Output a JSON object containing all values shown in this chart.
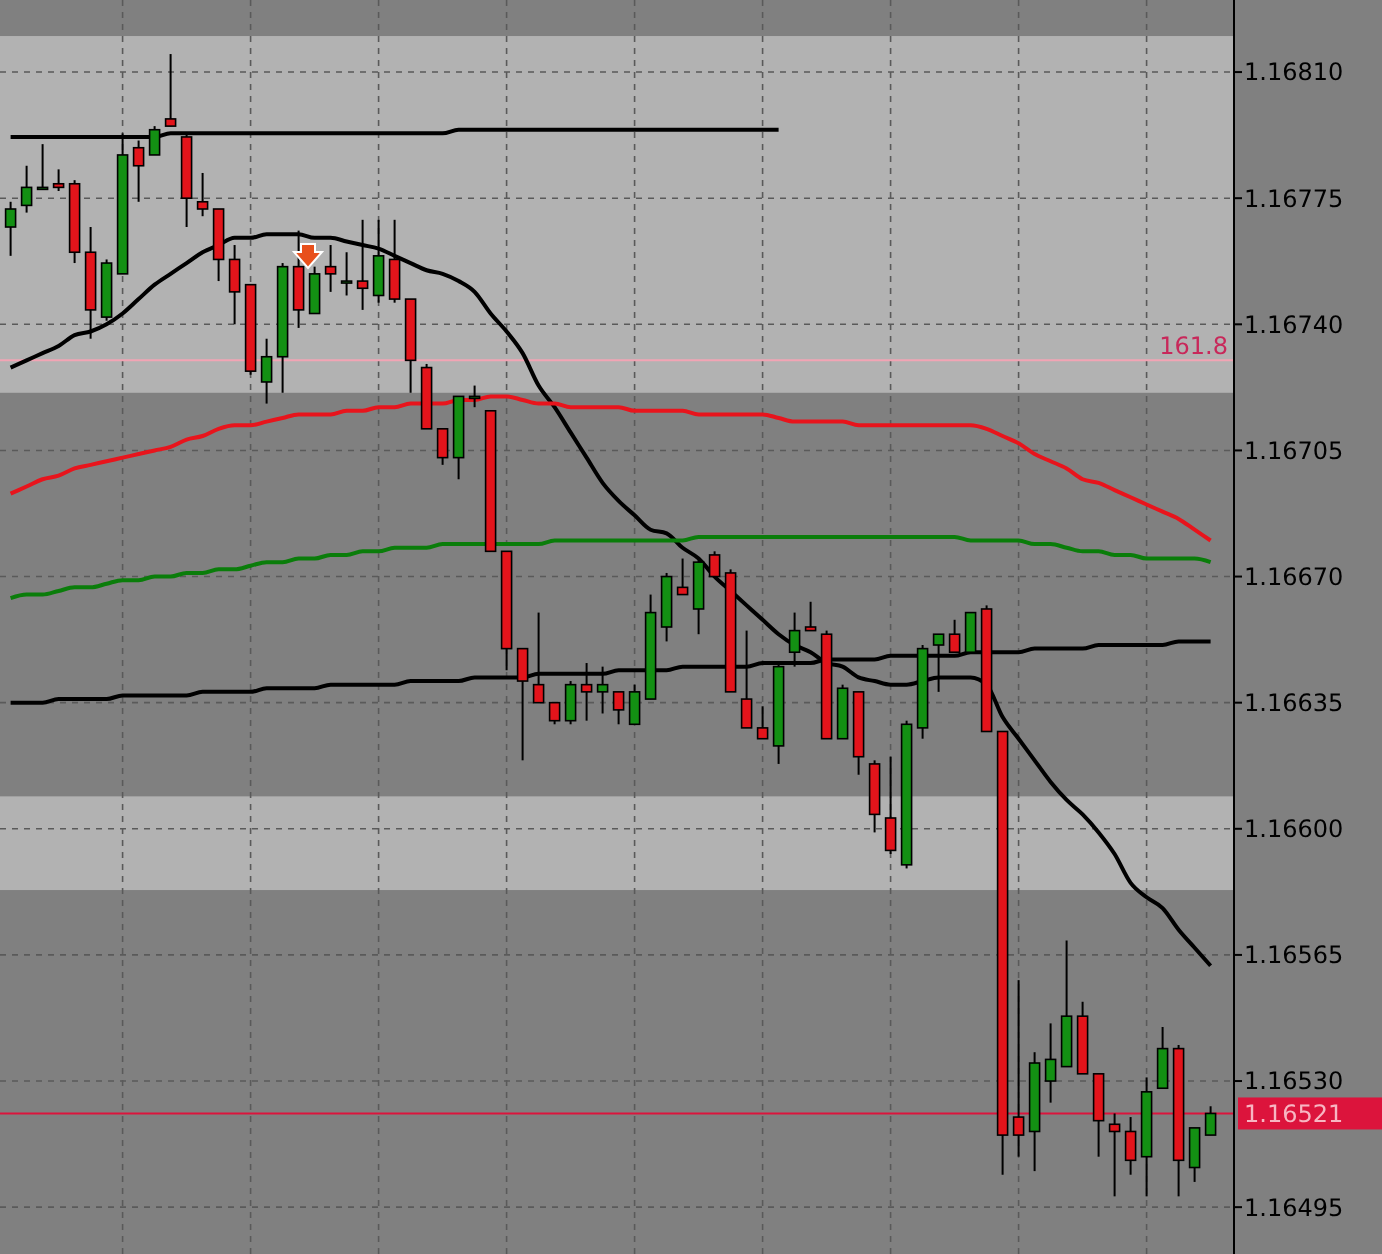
{
  "chart_data": {
    "type": "candlestick",
    "categories": [
      null,
      null,
      null,
      null,
      null,
      null,
      null,
      null,
      null,
      null,
      null,
      null,
      null,
      null,
      null,
      null,
      null,
      null,
      null,
      null,
      null,
      null,
      null,
      null,
      null,
      null,
      null,
      null,
      null,
      null,
      null,
      null,
      null,
      null,
      null,
      null,
      null,
      null,
      null,
      null,
      null,
      null,
      null,
      null,
      null,
      null,
      null,
      null,
      null,
      null,
      null,
      null,
      null,
      null,
      null,
      null,
      null,
      null,
      null,
      null,
      null,
      null,
      null,
      null,
      null,
      null,
      null,
      null,
      null,
      null,
      null,
      null,
      null,
      null,
      null,
      null
    ],
    "ohlc": [
      [
        1.16767,
        1.16774,
        1.16759,
        1.16772
      ],
      [
        1.16773,
        1.16784,
        1.16771,
        1.16778
      ],
      [
        1.16778,
        1.1679,
        1.16778,
        1.16778
      ],
      [
        1.16779,
        1.16783,
        1.16777,
        1.16778
      ],
      [
        1.16779,
        1.1678,
        1.16757,
        1.1676
      ],
      [
        1.1676,
        1.16767,
        1.16736,
        1.16744
      ],
      [
        1.16742,
        1.16758,
        1.16741,
        1.16757
      ],
      [
        1.16754,
        1.16793,
        1.16754,
        1.16787
      ],
      [
        1.16789,
        1.16791,
        1.16774,
        1.16784
      ],
      [
        1.16787,
        1.16795,
        1.16787,
        1.16794
      ],
      [
        1.16797,
        1.16815,
        1.16795,
        1.16795
      ],
      [
        1.16792,
        1.16793,
        1.16767,
        1.16775
      ],
      [
        1.16774,
        1.16782,
        1.1677,
        1.16772
      ],
      [
        1.16772,
        1.16772,
        1.16752,
        1.16758
      ],
      [
        1.16758,
        1.16762,
        1.1674,
        1.16749
      ],
      [
        1.16751,
        1.16751,
        1.16726,
        1.16727
      ],
      [
        1.16724,
        1.16736,
        1.16718,
        1.16731
      ],
      [
        1.16731,
        1.16757,
        1.16721,
        1.16756
      ],
      [
        1.16756,
        1.16766,
        1.16739,
        1.16744
      ],
      [
        1.16743,
        1.16756,
        1.16743,
        1.16754
      ],
      [
        1.16756,
        1.16762,
        1.16749,
        1.16754
      ],
      [
        1.16752,
        1.1676,
        1.16748,
        1.16752
      ],
      [
        1.16752,
        1.16769,
        1.16744,
        1.1675
      ],
      [
        1.16748,
        1.16769,
        1.16746,
        1.16759
      ],
      [
        1.16758,
        1.16769,
        1.16746,
        1.16747
      ],
      [
        1.16747,
        1.16747,
        1.16721,
        1.1673
      ],
      [
        1.16728,
        1.16729,
        1.16711,
        1.16711
      ],
      [
        1.16711,
        1.16711,
        1.16701,
        1.16703
      ],
      [
        1.16703,
        1.1672,
        1.16697,
        1.1672
      ],
      [
        1.1672,
        1.16723,
        1.16717,
        1.1672
      ],
      [
        1.16716,
        1.16716,
        1.16677,
        1.16677
      ],
      [
        1.16677,
        1.16677,
        1.16644,
        1.1665
      ],
      [
        1.1665,
        1.1665,
        1.16619,
        1.16641
      ],
      [
        1.1664,
        1.1666,
        1.16635,
        1.16635
      ],
      [
        1.16635,
        1.16635,
        1.16629,
        1.1663
      ],
      [
        1.1663,
        1.16641,
        1.16629,
        1.1664
      ],
      [
        1.1664,
        1.16646,
        1.1663,
        1.16638
      ],
      [
        1.16638,
        1.16645,
        1.16632,
        1.1664
      ],
      [
        1.16638,
        1.16638,
        1.16629,
        1.16633
      ],
      [
        1.16629,
        1.1664,
        1.16629,
        1.16638
      ],
      [
        1.16636,
        1.16665,
        1.16636,
        1.1666
      ],
      [
        1.16656,
        1.16671,
        1.16652,
        1.1667
      ],
      [
        1.16667,
        1.16675,
        1.16665,
        1.16665
      ],
      [
        1.16661,
        1.16675,
        1.16654,
        1.16674
      ],
      [
        1.16676,
        1.16677,
        1.1667,
        1.1667
      ],
      [
        1.16671,
        1.16672,
        1.16638,
        1.16638
      ],
      [
        1.16636,
        1.16655,
        1.16628,
        1.16628
      ],
      [
        1.16628,
        1.16634,
        1.16625,
        1.16625
      ],
      [
        1.16623,
        1.16646,
        1.16618,
        1.16645
      ],
      [
        1.16649,
        1.1666,
        1.16645,
        1.16655
      ],
      [
        1.16656,
        1.16663,
        1.16655,
        1.16655
      ],
      [
        1.16654,
        1.16655,
        1.16625,
        1.16625
      ],
      [
        1.16625,
        1.1664,
        1.16625,
        1.16639
      ],
      [
        1.16638,
        1.16638,
        1.16615,
        1.1662
      ],
      [
        1.16618,
        1.16619,
        1.16599,
        1.16604
      ],
      [
        1.16603,
        1.1662,
        1.16593,
        1.16594
      ],
      [
        1.1659,
        1.1663,
        1.16589,
        1.16629
      ],
      [
        1.16628,
        1.16651,
        1.16625,
        1.1665
      ],
      [
        1.16651,
        1.16654,
        1.16638,
        1.16654
      ],
      [
        1.16654,
        1.16658,
        1.16649,
        1.16649
      ],
      [
        1.16649,
        1.1666,
        1.16649,
        1.1666
      ],
      [
        1.16661,
        1.16662,
        1.16627,
        1.16627
      ],
      [
        1.16627,
        1.16627,
        1.16504,
        1.16515
      ],
      [
        1.1652,
        1.16558,
        1.16509,
        1.16515
      ],
      [
        1.16516,
        1.16538,
        1.16505,
        1.16535
      ],
      [
        1.1653,
        1.16546,
        1.16524,
        1.16536
      ],
      [
        1.16534,
        1.16569,
        1.16534,
        1.16548
      ],
      [
        1.16548,
        1.16552,
        1.16532,
        1.16532
      ],
      [
        1.16532,
        1.16532,
        1.16509,
        1.16519
      ],
      [
        1.16518,
        1.16521,
        1.16498,
        1.16516
      ],
      [
        1.16516,
        1.1652,
        1.16504,
        1.16508
      ],
      [
        1.16509,
        1.16531,
        1.16498,
        1.16527
      ],
      [
        1.16528,
        1.16545,
        1.16528,
        1.16539
      ],
      [
        1.16539,
        1.1654,
        1.16498,
        1.16508
      ],
      [
        1.16506,
        1.16517,
        1.16502,
        1.16517
      ],
      [
        1.16515,
        1.16523,
        1.16515,
        1.16521
      ]
    ],
    "colors": [
      "#139013",
      "#139013",
      "#139013",
      "#e3141b",
      "#e3141b",
      "#e3141b",
      "#139013",
      "#139013",
      "#e3141b",
      "#139013",
      "#e3141b",
      "#e3141b",
      "#e3141b",
      "#e3141b",
      "#e3141b",
      "#e3141b",
      "#139013",
      "#139013",
      "#e3141b",
      "#139013",
      "#e3141b",
      "#139013",
      "#e3141b",
      "#139013",
      "#e3141b",
      "#e3141b",
      "#e3141b",
      "#e3141b",
      "#139013",
      "#139013",
      "#e3141b",
      "#e3141b",
      "#e3141b",
      "#e3141b",
      "#e3141b",
      "#139013",
      "#e3141b",
      "#139013",
      "#e3141b",
      "#139013",
      "#139013",
      "#139013",
      "#e3141b",
      "#139013",
      "#e3141b",
      "#e3141b",
      "#e3141b",
      "#e3141b",
      "#139013",
      "#139013",
      "#e3141b",
      "#e3141b",
      "#139013",
      "#e3141b",
      "#e3141b",
      "#e3141b",
      "#139013",
      "#139013",
      "#139013",
      "#e3141b",
      "#139013",
      "#e3141b",
      "#e3141b",
      "#e3141b",
      "#139013",
      "#139013",
      "#139013",
      "#e3141b",
      "#e3141b",
      "#e3141b",
      "#e3141b",
      "#139013",
      "#139013",
      "#e3141b",
      "#139013",
      "#139013"
    ],
    "series": [
      {
        "type": "line",
        "color": "#000000",
        "values": [
          1.16728,
          1.1673,
          1.16732,
          1.16734,
          1.16737,
          1.16738,
          1.1674,
          1.16743,
          1.16747,
          1.16751,
          1.16754,
          1.16757,
          1.1676,
          1.16762,
          1.16764,
          1.16764,
          1.16765,
          1.16765,
          1.16765,
          1.16764,
          1.16764,
          1.16763,
          1.16762,
          1.16761,
          1.16759,
          1.16757,
          1.16755,
          1.16754,
          1.16752,
          1.16749,
          1.16743,
          1.16738,
          1.16732,
          1.16723,
          1.16717,
          1.1671,
          1.16703,
          1.16696,
          1.16691,
          1.16687,
          1.16683,
          1.16682,
          1.16678,
          1.16675,
          1.1667,
          1.16666,
          1.16662,
          1.16658,
          1.16654,
          1.16651,
          1.16649,
          1.16646,
          1.16645,
          1.16642,
          1.16641,
          1.1664,
          1.1664,
          1.16641,
          1.16642,
          1.16642,
          1.16642,
          1.1664,
          1.16631,
          1.16625,
          1.16619,
          1.16613,
          1.16608,
          1.16604,
          1.16599,
          1.16593,
          1.16585,
          1.16581,
          1.16578,
          1.16572,
          1.16567,
          1.16562
        ]
      },
      {
        "type": "line",
        "color": "#e8141c",
        "values": [
          1.16693,
          1.16695,
          1.16697,
          1.16698,
          1.167,
          1.16701,
          1.16702,
          1.16703,
          1.16704,
          1.16705,
          1.16706,
          1.16708,
          1.16709,
          1.16711,
          1.16712,
          1.16712,
          1.16713,
          1.16714,
          1.16715,
          1.16715,
          1.16715,
          1.16716,
          1.16716,
          1.16717,
          1.16717,
          1.16718,
          1.16718,
          1.16718,
          1.16719,
          1.16719,
          1.1672,
          1.1672,
          1.16719,
          1.16718,
          1.16718,
          1.16717,
          1.16717,
          1.16717,
          1.16717,
          1.16716,
          1.16716,
          1.16716,
          1.16716,
          1.16715,
          1.16715,
          1.16715,
          1.16715,
          1.16715,
          1.16714,
          1.16713,
          1.16713,
          1.16713,
          1.16713,
          1.16712,
          1.16712,
          1.16712,
          1.16712,
          1.16712,
          1.16712,
          1.16712,
          1.16712,
          1.16711,
          1.16709,
          1.16707,
          1.16704,
          1.16702,
          1.167,
          1.16697,
          1.16696,
          1.16694,
          1.16692,
          1.1669,
          1.16688,
          1.16686,
          1.16683,
          1.1668
        ]
      },
      {
        "type": "line",
        "color": "#0a7d0a",
        "values": [
          1.16664,
          1.16665,
          1.16665,
          1.16666,
          1.16667,
          1.16667,
          1.16668,
          1.16669,
          1.16669,
          1.1667,
          1.1667,
          1.16671,
          1.16671,
          1.16672,
          1.16672,
          1.16673,
          1.16674,
          1.16674,
          1.16675,
          1.16675,
          1.16676,
          1.16676,
          1.16677,
          1.16677,
          1.16678,
          1.16678,
          1.16678,
          1.16679,
          1.16679,
          1.16679,
          1.16679,
          1.16679,
          1.16679,
          1.16679,
          1.1668,
          1.1668,
          1.1668,
          1.1668,
          1.1668,
          1.1668,
          1.1668,
          1.1668,
          1.1668,
          1.16681,
          1.16681,
          1.16681,
          1.16681,
          1.16681,
          1.16681,
          1.16681,
          1.16681,
          1.16681,
          1.16681,
          1.16681,
          1.16681,
          1.16681,
          1.16681,
          1.16681,
          1.16681,
          1.16681,
          1.1668,
          1.1668,
          1.1668,
          1.1668,
          1.16679,
          1.16679,
          1.16678,
          1.16677,
          1.16677,
          1.16676,
          1.16676,
          1.16675,
          1.16675,
          1.16675,
          1.16675,
          1.16674
        ]
      },
      {
        "type": "line",
        "color": "#000000",
        "values": [
          1.16635,
          1.16635,
          1.16635,
          1.16636,
          1.16636,
          1.16636,
          1.16636,
          1.16637,
          1.16637,
          1.16637,
          1.16637,
          1.16637,
          1.16638,
          1.16638,
          1.16638,
          1.16638,
          1.16639,
          1.16639,
          1.16639,
          1.16639,
          1.1664,
          1.1664,
          1.1664,
          1.1664,
          1.1664,
          1.16641,
          1.16641,
          1.16641,
          1.16641,
          1.16642,
          1.16642,
          1.16642,
          1.16642,
          1.16643,
          1.16643,
          1.16643,
          1.16643,
          1.16643,
          1.16644,
          1.16644,
          1.16644,
          1.16644,
          1.16645,
          1.16645,
          1.16645,
          1.16645,
          1.16645,
          1.16646,
          1.16646,
          1.16646,
          1.16646,
          1.16647,
          1.16647,
          1.16647,
          1.16647,
          1.16648,
          1.16648,
          1.16648,
          1.16648,
          1.16648,
          1.16649,
          1.16649,
          1.16649,
          1.16649,
          1.1665,
          1.1665,
          1.1665,
          1.1665,
          1.16651,
          1.16651,
          1.16651,
          1.16651,
          1.16651,
          1.16652,
          1.16652,
          1.16652
        ]
      },
      {
        "type": "line",
        "color": "#000000",
        "values": [
          1.16792,
          1.16792,
          1.16792,
          1.16792,
          1.16792,
          1.16792,
          1.16792,
          1.16792,
          1.16792,
          1.16792,
          1.16793,
          1.16793,
          1.16793,
          1.16793,
          1.16793,
          1.16793,
          1.16793,
          1.16793,
          1.16793,
          1.16793,
          1.16793,
          1.16793,
          1.16793,
          1.16793,
          1.16793,
          1.16793,
          1.16793,
          1.16793,
          1.16794,
          1.16794,
          1.16794,
          1.16794,
          1.16794,
          1.16794,
          1.16794,
          1.16794,
          1.16794,
          1.16794,
          1.16794,
          1.16794,
          1.16794,
          1.16794,
          1.16794,
          1.16794,
          1.16794,
          1.16794,
          1.16794,
          1.16794,
          1.16794,
          null,
          null,
          null,
          null,
          null,
          null,
          null,
          null,
          null,
          null,
          null,
          null,
          null,
          null,
          null,
          null,
          null,
          null,
          null,
          null,
          null,
          null,
          null,
          null,
          null,
          null,
          null
        ]
      }
    ],
    "ylim": [
      1.16482,
      1.1683
    ],
    "yticks": [
      {
        "value": 1.16495,
        "label": "1.16495"
      },
      {
        "value": 1.1653,
        "label": "1.16530"
      },
      {
        "value": 1.16565,
        "label": "1.16565"
      },
      {
        "value": 1.166,
        "label": "1.16600"
      },
      {
        "value": 1.16635,
        "label": "1.16635"
      },
      {
        "value": 1.1667,
        "label": "1.16670"
      },
      {
        "value": 1.16705,
        "label": "1.16705"
      },
      {
        "value": 1.1674,
        "label": "1.16740"
      },
      {
        "value": 1.16775,
        "label": "1.16775"
      },
      {
        "value": 1.1681,
        "label": "1.16810"
      }
    ],
    "bands": [
      {
        "axis": "y",
        "from": 1.16721,
        "to": 1.1682,
        "color": "#b2b2b2"
      },
      {
        "axis": "y",
        "from": 1.16583,
        "to": 1.16609,
        "color": "#b2b2b2"
      }
    ],
    "annotations": [
      "161.8"
    ],
    "ref_lines": [
      {
        "axis": "y",
        "value": 1.1673,
        "color": "#f2a4b4"
      },
      {
        "axis": "y",
        "value": 1.16521,
        "label": "1.16521",
        "color": "#dc143c"
      }
    ],
    "grid": true
  }
}
